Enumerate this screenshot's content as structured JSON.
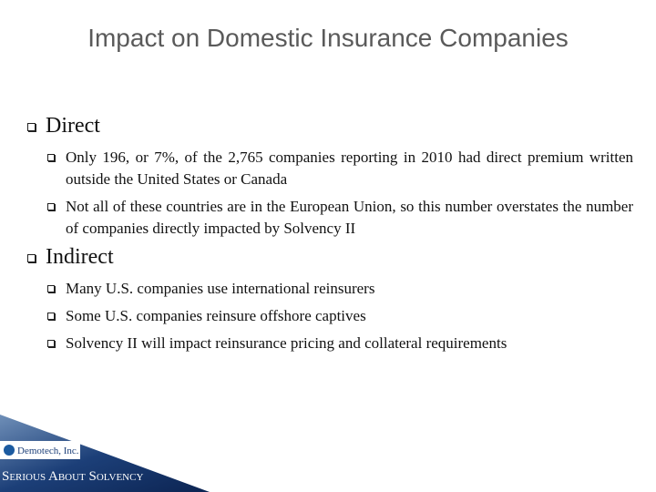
{
  "header": {
    "title": "Impact on Domestic Insurance Companies"
  },
  "sections": [
    {
      "heading": "Direct",
      "items": [
        "Only 196, or 7%, of the 2,765 companies reporting in 2010 had direct premium written outside the United States or Canada",
        "Not all of these countries are in the European Union, so this number overstates the number of companies directly impacted by Solvency II"
      ]
    },
    {
      "heading": "Indirect",
      "items": [
        "Many U.S. companies use international reinsurers",
        "Some U.S. companies reinsure offshore captives",
        "Solvency II will impact reinsurance pricing and collateral requirements"
      ]
    }
  ],
  "footer": {
    "logo": "Demotech, Inc.",
    "tagline": "Serious About Solvency",
    "mark": "®"
  }
}
